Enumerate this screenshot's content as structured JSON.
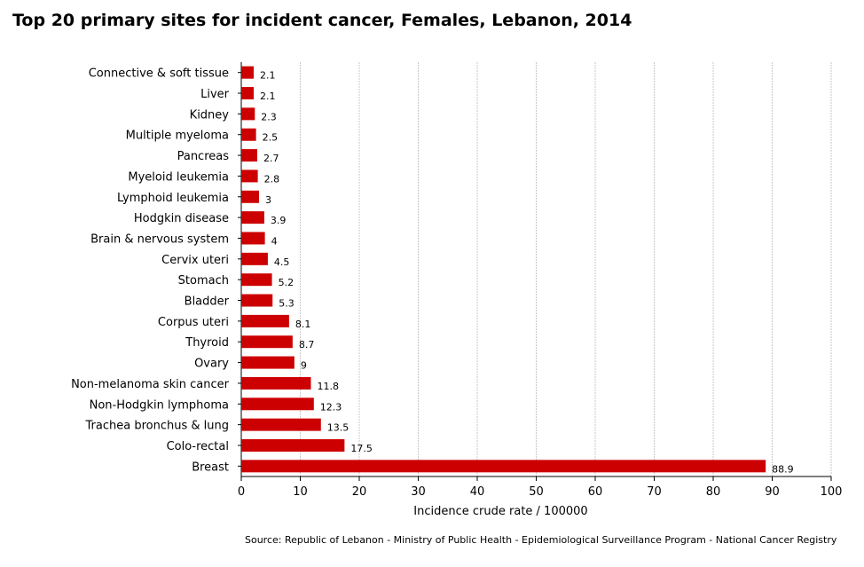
{
  "chart_data": {
    "type": "bar",
    "orientation": "horizontal",
    "title": "Top 20 primary sites for incident cancer, Females, Lebanon, 2014",
    "xlabel": "Incidence crude rate / 100000",
    "ylabel": "",
    "xlim": [
      0,
      100
    ],
    "xticks": [
      "0",
      "10",
      "20",
      "30",
      "40",
      "50",
      "60",
      "70",
      "80",
      "90",
      "100"
    ],
    "grid": true,
    "categories": [
      "Connective & soft tissue",
      "Liver",
      "Kidney",
      "Multiple myeloma",
      "Pancreas",
      "Myeloid leukemia",
      "Lymphoid leukemia",
      "Hodgkin disease",
      "Brain & nervous system",
      "Cervix uteri",
      "Stomach",
      "Bladder",
      "Corpus uteri",
      "Thyroid",
      "Ovary",
      "Non-melanoma skin cancer",
      "Non-Hodgkin lymphoma",
      "Trachea bronchus & lung",
      "Colo-rectal",
      "Breast"
    ],
    "values": [
      2.1,
      2.1,
      2.3,
      2.5,
      2.7,
      2.8,
      3,
      3.9,
      4,
      4.5,
      5.2,
      5.3,
      8.1,
      8.7,
      9,
      11.8,
      12.3,
      13.5,
      17.5,
      88.9
    ],
    "value_labels": [
      "2.1",
      "2.1",
      "2.3",
      "2.5",
      "2.7",
      "2.8",
      "3",
      "3.9",
      "4",
      "4.5",
      "5.2",
      "5.3",
      "8.1",
      "8.7",
      "9",
      "11.8",
      "12.3",
      "13.5",
      "17.5",
      "88.9"
    ],
    "bar_color": "#cc0000"
  },
  "source": "Source:  Republic of Lebanon  - Ministry of Public Health - Epidemiological Surveillance Program - National Cancer Registry"
}
